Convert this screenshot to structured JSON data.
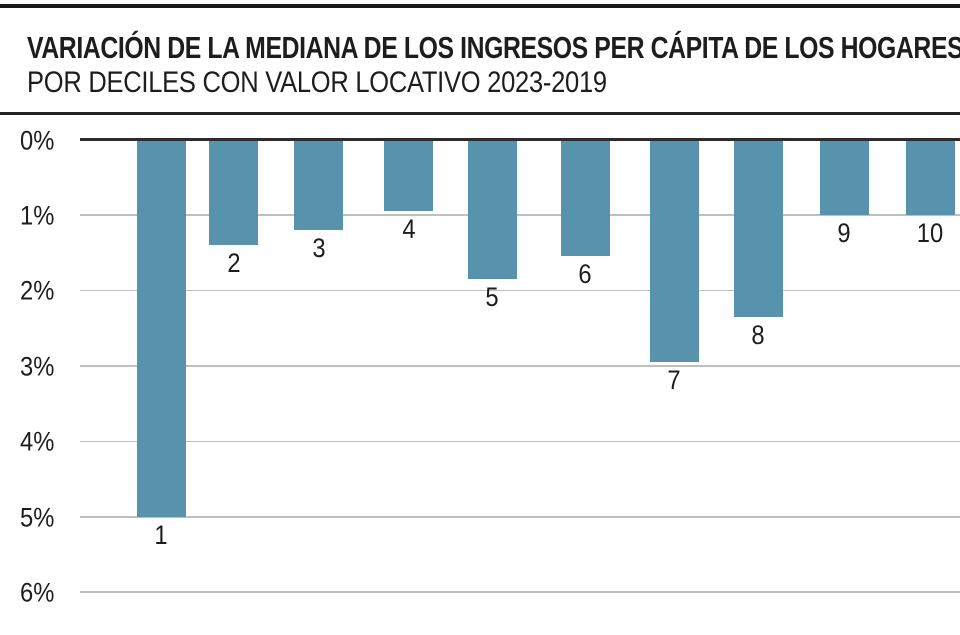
{
  "header": {
    "title_line1": "VARIACIÓN DE LA MEDIANA DE LOS INGRESOS PER CÁPITA DE LOS HOGARES",
    "title_line2": "POR DECILES CON VALOR LOCATIVO 2023-2019"
  },
  "colors": {
    "bar": "#5793ac",
    "zero_axis": "#2f2b2c",
    "gridline": "#bfbfbf",
    "text": "#1d1d1b",
    "rule": "#191919"
  },
  "chart_data": {
    "type": "bar",
    "title": "VARIACIÓN DE LA MEDIANA DE LOS INGRESOS PER CÁPITA DE LOS HOGARES",
    "subtitle": "POR DECILES CON VALOR LOCATIVO 2023-2019",
    "categories": [
      "1",
      "2",
      "3",
      "4",
      "5",
      "6",
      "7",
      "8",
      "9",
      "10"
    ],
    "values": [
      -5.0,
      -1.4,
      -1.2,
      -0.95,
      -1.85,
      -1.55,
      -2.95,
      -2.35,
      -1.0,
      -1.0
    ],
    "unit": "%",
    "bars_direction": "down",
    "xlabel": "",
    "ylabel": "",
    "y_axis": {
      "ticks": [
        0,
        1,
        2,
        3,
        4,
        5,
        6
      ],
      "tick_labels": [
        "0%",
        "1%",
        "2%",
        "3%",
        "4%",
        "5%",
        "6%"
      ],
      "range": [
        0,
        6
      ],
      "direction": "down"
    },
    "grid": true,
    "legend": false
  }
}
